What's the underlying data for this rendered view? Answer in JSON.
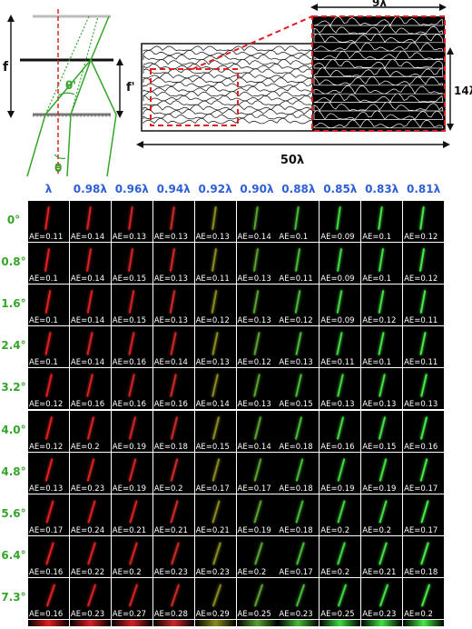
{
  "diagram": {
    "f_label": "f",
    "fprime_label": "f'",
    "theta_label": "θ",
    "thetaprime_label": "θ'",
    "width_label": "50λ",
    "zoom_width_label": "9λ",
    "zoom_height_label": "14λ"
  },
  "grid": {
    "columns": [
      "λ",
      "0.98λ",
      "0.96λ",
      "0.94λ",
      "0.92λ",
      "0.90λ",
      "0.88λ",
      "0.85λ",
      "0.83λ",
      "0.81λ"
    ],
    "rows": [
      "0°",
      "0.8°",
      "1.6°",
      "2.4°",
      "3.2°",
      "4.0°",
      "4.8°",
      "5.6°",
      "6.4°",
      "7.3°"
    ],
    "values": [
      [
        "AE=0.11",
        "AE=0.14",
        "AE=0.13",
        "AE=0.13",
        "AE=0.13",
        "AE=0.14",
        "AE=0.1",
        "AE=0.09",
        "AE=0.1",
        "AE=0.12"
      ],
      [
        "AE=0.1",
        "AE=0.14",
        "AE=0.15",
        "AE=0.13",
        "AE=0.11",
        "AE=0.13",
        "AE=0.11",
        "AE=0.09",
        "AE=0.1",
        "AE=0.12"
      ],
      [
        "AE=0.1",
        "AE=0.14",
        "AE=0.15",
        "AE=0.13",
        "AE=0.12",
        "AE=0.13",
        "AE=0.12",
        "AE=0.09",
        "AE=0.12",
        "AE=0.11"
      ],
      [
        "AE=0.1",
        "AE=0.14",
        "AE=0.16",
        "AE=0.14",
        "AE=0.13",
        "AE=0.12",
        "AE=0.13",
        "AE=0.11",
        "AE=0.1",
        "AE=0.11"
      ],
      [
        "AE=0.12",
        "AE=0.16",
        "AE=0.16",
        "AE=0.16",
        "AE=0.14",
        "AE=0.13",
        "AE=0.15",
        "AE=0.13",
        "AE=0.13",
        "AE=0.13"
      ],
      [
        "AE=0.12",
        "AE=0.2",
        "AE=0.19",
        "AE=0.18",
        "AE=0.15",
        "AE=0.14",
        "AE=0.18",
        "AE=0.16",
        "AE=0.15",
        "AE=0.16"
      ],
      [
        "AE=0.13",
        "AE=0.23",
        "AE=0.19",
        "AE=0.2",
        "AE=0.17",
        "AE=0.17",
        "AE=0.18",
        "AE=0.19",
        "AE=0.19",
        "AE=0.17"
      ],
      [
        "AE=0.17",
        "AE=0.24",
        "AE=0.21",
        "AE=0.21",
        "AE=0.21",
        "AE=0.19",
        "AE=0.18",
        "AE=0.2",
        "AE=0.2",
        "AE=0.17"
      ],
      [
        "AE=0.16",
        "AE=0.22",
        "AE=0.2",
        "AE=0.23",
        "AE=0.23",
        "AE=0.2",
        "AE=0.17",
        "AE=0.2",
        "AE=0.21",
        "AE=0.18"
      ],
      [
        "AE=0.16",
        "AE=0.23",
        "AE=0.27",
        "AE=0.28",
        "AE=0.29",
        "AE=0.25",
        "AE=0.23",
        "AE=0.25",
        "AE=0.23",
        "AE=0.2"
      ]
    ],
    "column_colors": [
      "#e02020",
      "#d82222",
      "#d02424",
      "#c82a28",
      "#8a8a20",
      "#5aa030",
      "#48b838",
      "#40d840",
      "#44e044",
      "#48e848"
    ]
  }
}
